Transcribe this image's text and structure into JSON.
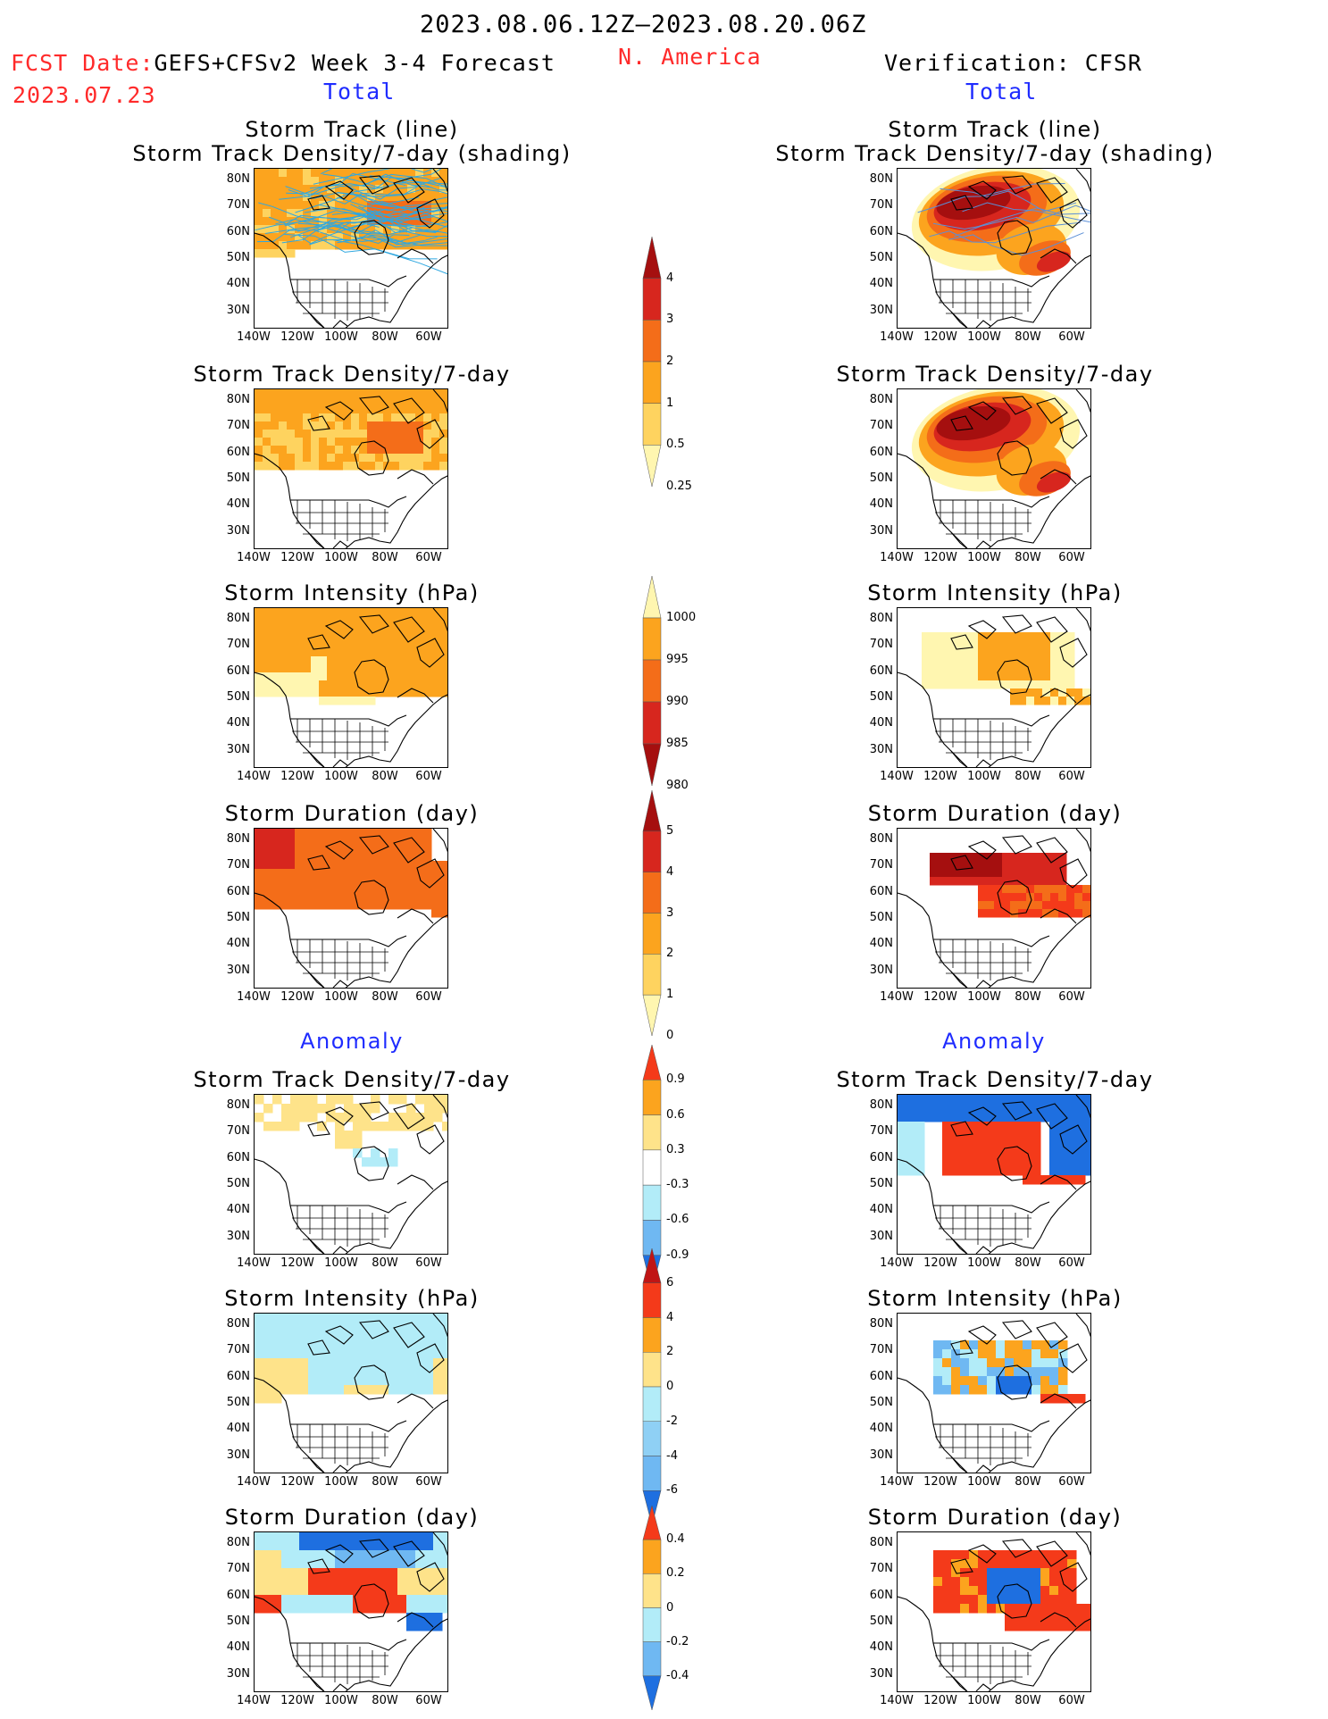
{
  "header": {
    "date_range": "2023.08.06.12Z–2023.08.20.06Z",
    "fcst_label": "FCST Date:",
    "fcst_model": "GEFS+CFSv2 Week 3-4 Forecast",
    "fcst_date": "2023.07.23",
    "region": "N. America",
    "verification": "Verification: CFSR",
    "left_total": "Total",
    "right_total": "Total",
    "left_anomaly": "Anomaly",
    "right_anomaly": "Anomaly"
  },
  "axes": {
    "lat_labels": [
      "80N",
      "70N",
      "60N",
      "50N",
      "40N",
      "30N"
    ],
    "lon_labels": [
      "140W",
      "120W",
      "100W",
      "80W",
      "60W"
    ]
  },
  "panels": {
    "left": [
      {
        "title": "Storm Track (line)",
        "subtitle": "Storm Track Density/7-day (shading)"
      },
      {
        "title": "Storm Track Density/7-day"
      },
      {
        "title": "Storm Intensity (hPa)"
      },
      {
        "title": "Storm Duration (day)"
      },
      {
        "title": "Storm Track Density/7-day"
      },
      {
        "title": "Storm Intensity (hPa)"
      },
      {
        "title": "Storm Duration (day)"
      }
    ],
    "right": [
      {
        "title": "Storm Track (line)",
        "subtitle": "Storm Track Density/7-day (shading)"
      },
      {
        "title": "Storm Track Density/7-day"
      },
      {
        "title": "Storm Intensity (hPa)"
      },
      {
        "title": "Storm Duration (day)"
      },
      {
        "title": "Storm Track Density/7-day"
      },
      {
        "title": "Storm Intensity (hPa)"
      },
      {
        "title": "Storm Duration (day)"
      }
    ]
  },
  "colorbars": [
    {
      "name": "density",
      "labels": [
        "4",
        "3",
        "2",
        "1",
        "0.5",
        "0.25"
      ],
      "colors": [
        "#a50f0f",
        "#d7261e",
        "#f46d19",
        "#fca41e",
        "#fed35f",
        "#fff6b0"
      ]
    },
    {
      "name": "intensity",
      "labels": [
        "1000",
        "995",
        "990",
        "985",
        "980"
      ],
      "colors": [
        "#fff6b0",
        "#fca41e",
        "#f46d19",
        "#d7261e",
        "#a50f0f"
      ]
    },
    {
      "name": "duration",
      "labels": [
        "5",
        "4",
        "3",
        "2",
        "1",
        "0"
      ],
      "colors": [
        "#a50f0f",
        "#d7261e",
        "#f46d19",
        "#fca41e",
        "#fed35f",
        "#fff6b0"
      ]
    },
    {
      "name": "density-anomaly",
      "labels": [
        "0.9",
        "0.6",
        "0.3",
        "-0.3",
        "-0.6",
        "-0.9"
      ],
      "colors": [
        "#f43a1a",
        "#fca41e",
        "#fee38a",
        "#ffffff",
        "#b2ecf8",
        "#6fb8f2",
        "#1e6fe0"
      ]
    },
    {
      "name": "intensity-anomaly",
      "labels": [
        "6",
        "4",
        "2",
        "0",
        "-2",
        "-4",
        "-6"
      ],
      "colors": [
        "#c01515",
        "#f43a1a",
        "#fca41e",
        "#fee38a",
        "#b2ecf8",
        "#8fd0f5",
        "#6fb8f2",
        "#1e6fe0"
      ]
    },
    {
      "name": "duration-anomaly",
      "labels": [
        "0.4",
        "0.2",
        "0",
        "-0.2",
        "-0.4"
      ],
      "colors": [
        "#f43a1a",
        "#fca41e",
        "#fee38a",
        "#b2ecf8",
        "#6fb8f2",
        "#1e6fe0"
      ]
    }
  ],
  "colors": {
    "forecast_text": "#ff2a2a",
    "section_text": "#1f2cff"
  }
}
